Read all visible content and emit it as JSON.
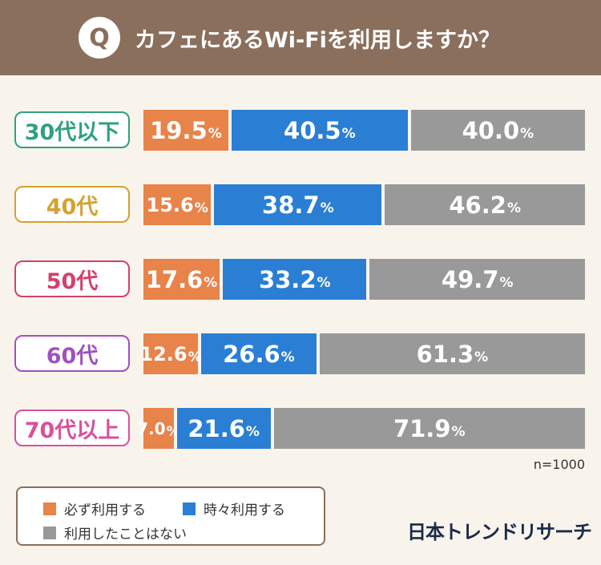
{
  "header": {
    "q_mark": "Q",
    "title": "カフェにあるWi-Fiを利用しますか？"
  },
  "colors": {
    "header_bg": "#8a6f5c",
    "page_bg": "#f8f4ec"
  },
  "chart_data": {
    "type": "bar",
    "orientation": "horizontal",
    "stacked": true,
    "title": "カフェにあるWi-Fiを利用しますか？",
    "categories": [
      "30代以下",
      "40代",
      "50代",
      "60代",
      "70代以上"
    ],
    "category_colors": [
      "#2fa07e",
      "#d6a030",
      "#d63f6e",
      "#a050c0",
      "#d9509a"
    ],
    "series": [
      {
        "name": "必ず利用する",
        "color": "#e8834a",
        "values": [
          19.5,
          15.6,
          17.6,
          12.6,
          7.0
        ]
      },
      {
        "name": "時々利用する",
        "color": "#2a7fd4",
        "values": [
          40.5,
          38.7,
          33.2,
          26.6,
          21.6
        ]
      },
      {
        "name": "利用したことはない",
        "color": "#999999",
        "values": [
          40.0,
          46.2,
          49.7,
          61.3,
          71.9
        ]
      }
    ],
    "value_labels": [
      [
        "19.5",
        "40.5",
        "40.0"
      ],
      [
        "15.6",
        "38.7",
        "46.2"
      ],
      [
        "17.6",
        "33.2",
        "49.7"
      ],
      [
        "12.6",
        "26.6",
        "61.3"
      ],
      [
        "7.0",
        "21.6",
        "71.9"
      ]
    ],
    "unit": "%",
    "note": "n=1000"
  },
  "legend": {
    "items": [
      {
        "label": "必ず利用する",
        "color": "#e8834a"
      },
      {
        "label": "時々利用する",
        "color": "#2a7fd4"
      },
      {
        "label": "利用したことはない",
        "color": "#999999"
      }
    ]
  },
  "brand": "日本トレンドリサーチ"
}
